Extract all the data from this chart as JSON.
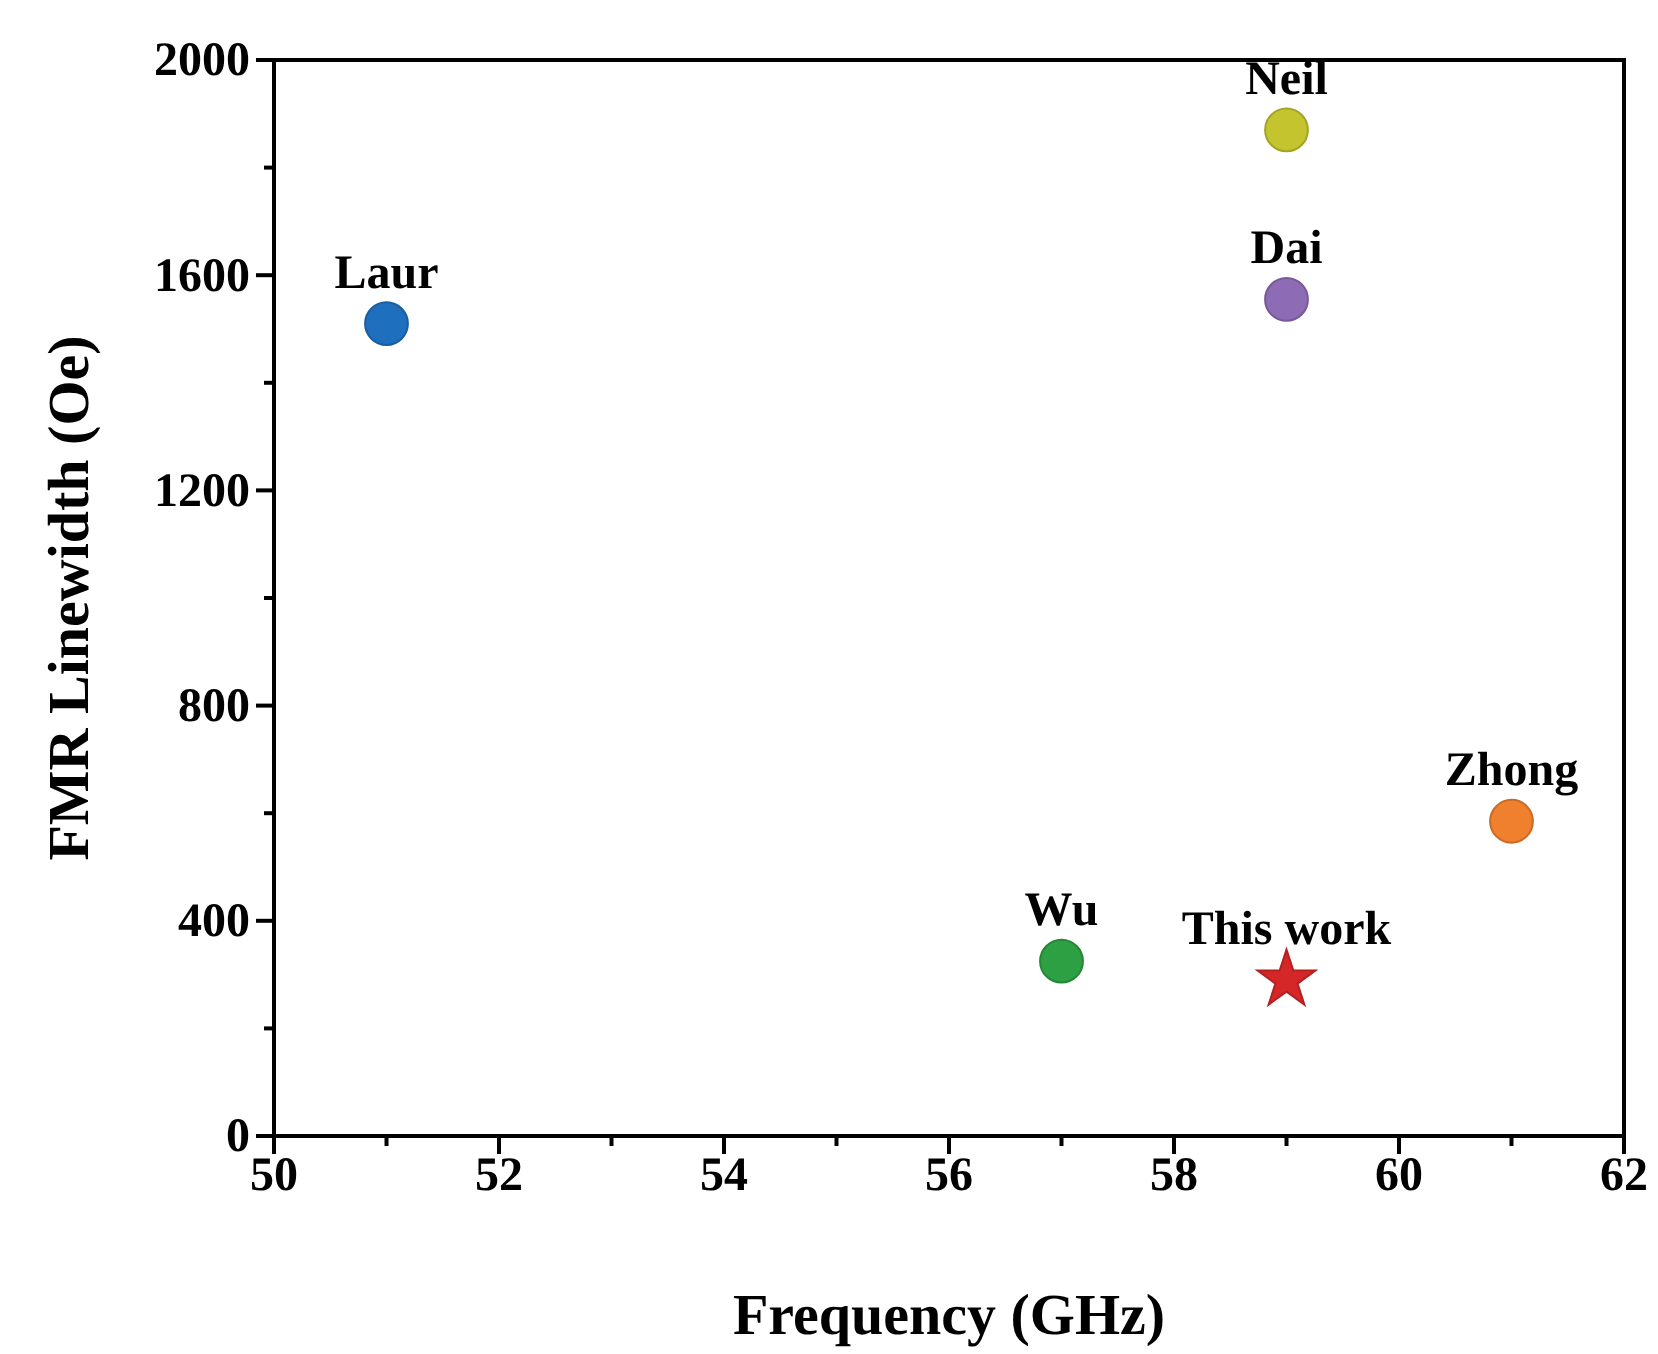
{
  "chart_data": {
    "type": "scatter",
    "xlabel": "Frequency (GHz)",
    "ylabel": "FMR Linewidth (Oe)",
    "xlim": [
      50,
      62
    ],
    "xticks": [
      50,
      {
        "value": 51,
        "label": null
      },
      52,
      {
        "value": 53,
        "label": null
      },
      54,
      {
        "value": 55,
        "label": null
      },
      56,
      {
        "value": 57,
        "label": null
      },
      58,
      {
        "value": 59,
        "label": null
      },
      60,
      {
        "value": 61,
        "label": null
      },
      62
    ],
    "ylim": [
      0,
      2000
    ],
    "yticks": [
      0,
      {
        "value": 200,
        "label": null
      },
      400,
      {
        "value": 600,
        "label": null
      },
      800,
      {
        "value": 1000,
        "label": null
      },
      1200,
      {
        "value": 1400,
        "label": null
      },
      1600,
      {
        "value": 1800,
        "label": null
      },
      2000
    ],
    "grid": false,
    "marker": "circle",
    "series": [
      {
        "name": "Laur",
        "color": "#1f6fbf",
        "x": [
          51
        ],
        "values": [
          1510
        ]
      },
      {
        "name": "Neil",
        "color": "#c4c42e",
        "x": [
          59
        ],
        "values": [
          1870
        ]
      },
      {
        "name": "Dai",
        "color": "#8e6bb5",
        "x": [
          59
        ],
        "values": [
          1555
        ]
      },
      {
        "name": "Zhong",
        "color": "#f07f2e",
        "x": [
          61
        ],
        "values": [
          585
        ]
      },
      {
        "name": "Wu",
        "color": "#2ca043",
        "x": [
          57
        ],
        "values": [
          325
        ]
      },
      {
        "name": "This work",
        "color": "#d62728",
        "x": [
          59
        ],
        "values": [
          290
        ],
        "marker": "star"
      }
    ]
  }
}
